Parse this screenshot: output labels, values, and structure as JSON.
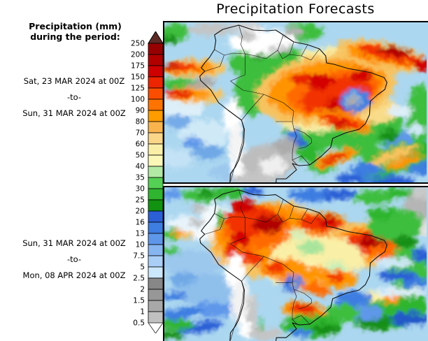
{
  "title": "Precipitation Forecasts",
  "legend": {
    "heading": [
      "Precipitation (mm)",
      "during the period:"
    ],
    "ticks": [
      "250",
      "200",
      "175",
      "150",
      "125",
      "100",
      "90",
      "80",
      "70",
      "60",
      "50",
      "40",
      "35",
      "30",
      "25",
      "20",
      "16",
      "13",
      "10",
      "7.5",
      "5",
      "2.5",
      "2",
      "1.5",
      "1",
      "0.5"
    ],
    "segments": [
      "#970000",
      "#B00000",
      "#CE0000",
      "#EC2400",
      "#FB4D00",
      "#FF7300",
      "#FF9C00",
      "#F9B44E",
      "#FAD689",
      "#FAEFA6",
      "#FBF7B6",
      "#B2E9A4",
      "#54D054",
      "#2FB52F",
      "#119211",
      "#2B5FD5",
      "#3E7DE1",
      "#5E97EA",
      "#86B5F0",
      "#A9CFF7",
      "#CBE8FB",
      "#878787",
      "#979797",
      "#A8A8A8",
      "#C0C0C0"
    ],
    "arrow_top_color": "#5E2A26",
    "arrow_bottom_color": "#FFFFFF"
  },
  "panels": [
    {
      "period_start": "Sat, 23 MAR 2024 at 00Z",
      "period_separator": "-to-",
      "period_end": "Sun, 31 MAR 2024 at 00Z"
    },
    {
      "period_start": "Sun, 31 MAR 2024 at 00Z",
      "period_separator": "-to-",
      "period_end": "Mon, 08 APR 2024 at 00Z"
    }
  ]
}
